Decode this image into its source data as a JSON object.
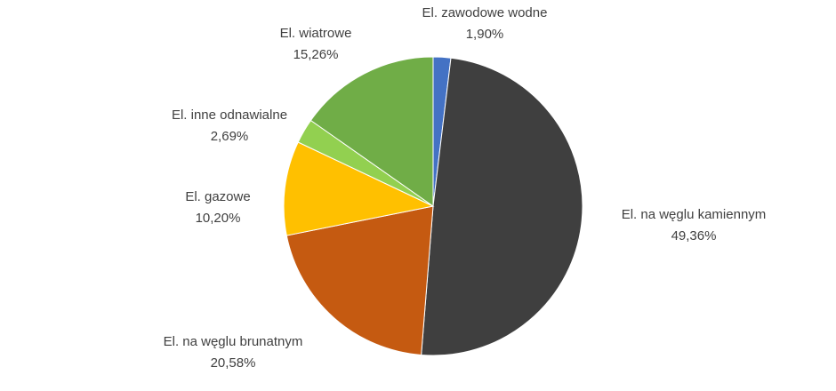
{
  "chart_data": {
    "type": "pie",
    "categories": [
      "El. zawodowe wodne",
      "El. na węglu kamiennym",
      "El. na węglu brunatnym",
      "El. gazowe",
      "El. inne odnawialne",
      "El. wiatrowe"
    ],
    "values": [
      1.9,
      49.36,
      20.58,
      10.2,
      2.69,
      15.26
    ],
    "value_labels": [
      "1,90%",
      "49,36%",
      "20,58%",
      "10,20%",
      "2,69%",
      "15,26%"
    ],
    "colors": [
      "#4472c4",
      "#3f3f3f",
      "#c55a11",
      "#ffc000",
      "#92d050",
      "#70ad47"
    ]
  }
}
